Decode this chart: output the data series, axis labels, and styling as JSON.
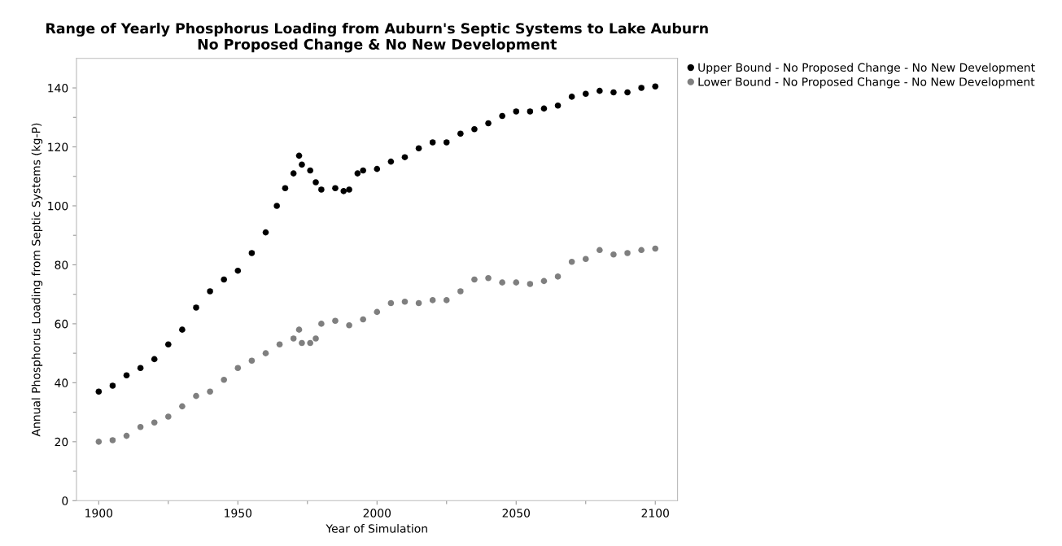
{
  "chart_data": {
    "type": "scatter",
    "title": "Range of Yearly Phosphorus Loading from Auburn's Septic Systems to Lake Auburn\nNo Proposed Change & No New Development",
    "xlabel": "Year of Simulation",
    "ylabel": "Annual Phosphorus Loading from Septic Systems (kg-P)",
    "xlim": [
      1892,
      2108
    ],
    "ylim": [
      0,
      150
    ],
    "xticks": [
      1900,
      {
        "value": 1925,
        "label": null
      },
      1950,
      {
        "value": 1975,
        "label": null
      },
      2000,
      {
        "value": 2025,
        "label": null
      },
      2050,
      {
        "value": 2075,
        "label": null
      },
      2100
    ],
    "yticks": [
      0,
      {
        "value": 10,
        "label": null
      },
      20,
      {
        "value": 30,
        "label": null
      },
      40,
      {
        "value": 50,
        "label": null
      },
      60,
      {
        "value": 70,
        "label": null
      },
      80,
      {
        "value": 90,
        "label": null
      },
      100,
      {
        "value": 110,
        "label": null
      },
      120,
      {
        "value": 130,
        "label": null
      },
      140
    ],
    "grid": false,
    "legend": "top right",
    "marker": "circle",
    "series": [
      {
        "name": "Upper Bound - No Proposed Change - No New Development",
        "color": "#000000",
        "x": [
          1900,
          1905,
          1910,
          1915,
          1920,
          1925,
          1930,
          1935,
          1940,
          1945,
          1950,
          1955,
          1960,
          1964,
          1967,
          1970,
          1972,
          1973,
          1976,
          1978,
          1980,
          1985,
          1988,
          1990,
          1993,
          1995,
          2000,
          2005,
          2010,
          2015,
          2020,
          2025,
          2030,
          2035,
          2040,
          2045,
          2050,
          2055,
          2060,
          2065,
          2070,
          2075,
          2080,
          2085,
          2090,
          2095,
          2100
        ],
        "values": [
          37,
          39,
          42.5,
          45,
          48,
          53,
          58,
          65.5,
          71,
          75,
          78,
          84,
          91,
          100,
          106,
          111,
          117,
          114,
          112,
          108,
          105.5,
          106,
          105,
          105.5,
          111,
          112,
          112.5,
          115,
          116.5,
          119.5,
          121.5,
          121.5,
          124.5,
          126,
          128,
          130.5,
          132,
          132,
          133,
          134,
          137,
          138,
          139,
          138.5,
          138.5,
          140,
          140.5
        ]
      },
      {
        "name": "Lower Bound - No Proposed Change - No New Development",
        "color": "#7f7f7f",
        "x": [
          1900,
          1905,
          1910,
          1915,
          1920,
          1925,
          1930,
          1935,
          1940,
          1945,
          1950,
          1955,
          1960,
          1965,
          1970,
          1972,
          1973,
          1976,
          1978,
          1980,
          1985,
          1990,
          1995,
          2000,
          2005,
          2010,
          2015,
          2020,
          2025,
          2030,
          2035,
          2040,
          2045,
          2050,
          2055,
          2060,
          2065,
          2070,
          2075,
          2080,
          2085,
          2090,
          2095,
          2100
        ],
        "values": [
          20,
          20.5,
          22,
          25,
          26.5,
          28.5,
          32,
          35.5,
          37,
          41,
          45,
          47.5,
          50,
          53,
          55,
          58,
          53.5,
          53.5,
          55,
          60,
          61,
          59.5,
          61.5,
          64,
          67,
          67.5,
          67,
          68,
          68,
          71,
          75,
          75.5,
          74,
          74,
          73.5,
          74.5,
          76,
          81,
          82,
          85,
          83.5,
          84,
          85,
          85.5
        ]
      }
    ]
  }
}
